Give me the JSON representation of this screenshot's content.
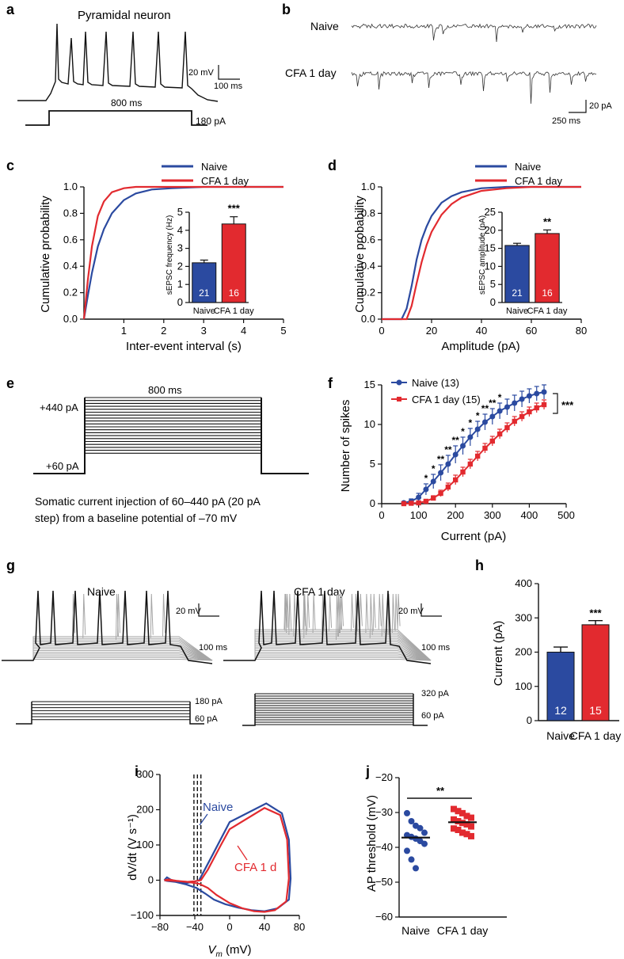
{
  "colors": {
    "naive": "#2b4aa0",
    "cfa": "#e22a2f",
    "gray": "#a6a6a6",
    "black": "#111111"
  },
  "panels": {
    "a": {
      "letter": "a",
      "title": "Pyramidal neuron",
      "duration": "800 ms",
      "current": "180 pA",
      "scale_mv": "20 mV",
      "scale_ms": "100 ms"
    },
    "b": {
      "letter": "b",
      "trace1": "Naive",
      "trace2": "CFA 1 day",
      "scale_pa": "20 pA",
      "scale_ms": "250 ms"
    },
    "e": {
      "letter": "e",
      "duration": "800 ms",
      "top": "+440 pA",
      "bottom": "+60 pA",
      "caption_line1": "Somatic current injection of 60–440 pA (20 pA",
      "caption_line2": "step) from a baseline potential of –70 mV"
    },
    "g": {
      "letter": "g",
      "naive_title": "Naive",
      "cfa_title": "CFA 1 day",
      "naive_top": "180 pA",
      "naive_bottom": "60 pA",
      "cfa_top": "320 pA",
      "cfa_bottom": "60 pA",
      "scale_mv": "20 mV",
      "scale_ms": "100 ms"
    }
  },
  "chart_data": [
    {
      "id": "c",
      "type": "line",
      "letter": "c",
      "xlabel": "Inter-event interval (s)",
      "ylabel": "Cumulative probability",
      "xlim": [
        0,
        5
      ],
      "ylim": [
        0,
        1.0
      ],
      "xticks": [
        "1",
        "2",
        "3",
        "4",
        "5"
      ],
      "yticks": [
        "0.0",
        "0.2",
        "0.4",
        "0.6",
        "0.8",
        "1.0"
      ],
      "legend": [
        "Naive",
        "CFA 1 day"
      ],
      "series": [
        {
          "name": "Naive",
          "x": [
            0,
            0.1,
            0.2,
            0.35,
            0.5,
            0.7,
            1.0,
            1.3,
            1.7,
            2.2,
            3.0,
            4.0,
            5.0
          ],
          "y": [
            0,
            0.18,
            0.35,
            0.55,
            0.68,
            0.8,
            0.9,
            0.95,
            0.98,
            0.99,
            1.0,
            1.0,
            1.0
          ]
        },
        {
          "name": "CFA 1 day",
          "x": [
            0,
            0.1,
            0.2,
            0.35,
            0.5,
            0.7,
            1.0,
            1.3,
            1.7,
            2.2,
            3.0,
            4.0,
            5.0
          ],
          "y": [
            0,
            0.3,
            0.55,
            0.78,
            0.89,
            0.96,
            0.99,
            1.0,
            1.0,
            1.0,
            1.0,
            1.0,
            1.0
          ]
        }
      ],
      "inset": {
        "ylabel": "sEPSC frequency (Hz)",
        "ylim": [
          0,
          5
        ],
        "yticks": [
          "0",
          "1",
          "2",
          "3",
          "4",
          "5"
        ],
        "categories": [
          "Naive",
          "CFA 1 day"
        ],
        "values": [
          2.2,
          4.35
        ],
        "errors": [
          0.15,
          0.4
        ],
        "n": [
          "21",
          "16"
        ],
        "significance": "***"
      }
    },
    {
      "id": "d",
      "type": "line",
      "letter": "d",
      "xlabel": "Amplitude (pA)",
      "ylabel": "Cumulative probability",
      "xlim": [
        0,
        80
      ],
      "ylim": [
        0,
        1.0
      ],
      "xticks": [
        "0",
        "20",
        "40",
        "60",
        "80"
      ],
      "yticks": [
        "0.0",
        "0.2",
        "0.4",
        "0.6",
        "0.8",
        "1.0"
      ],
      "legend": [
        "Naive",
        "CFA 1 day"
      ],
      "series": [
        {
          "name": "Naive",
          "x": [
            0,
            8,
            10,
            12,
            14,
            16,
            18,
            20,
            24,
            28,
            32,
            40,
            50,
            60,
            80
          ],
          "y": [
            0,
            0,
            0.08,
            0.25,
            0.45,
            0.6,
            0.7,
            0.78,
            0.88,
            0.93,
            0.96,
            0.99,
            1.0,
            1.0,
            1.0
          ]
        },
        {
          "name": "CFA 1 day",
          "x": [
            0,
            10,
            12,
            14,
            16,
            18,
            20,
            24,
            28,
            32,
            40,
            50,
            60,
            70,
            80
          ],
          "y": [
            0,
            0,
            0.1,
            0.27,
            0.43,
            0.56,
            0.66,
            0.79,
            0.87,
            0.92,
            0.97,
            0.99,
            1.0,
            1.0,
            1.0
          ]
        }
      ],
      "inset": {
        "ylabel": "sEPSC amplitude (pA)",
        "ylim": [
          0,
          25
        ],
        "yticks": [
          "0",
          "5",
          "10",
          "15",
          "20",
          "25"
        ],
        "categories": [
          "Naive",
          "CFA 1 day"
        ],
        "values": [
          15.8,
          19.1
        ],
        "errors": [
          0.6,
          1.0
        ],
        "n": [
          "21",
          "16"
        ],
        "significance": "**"
      }
    },
    {
      "id": "f",
      "type": "line",
      "letter": "f",
      "xlabel": "Current (pA)",
      "ylabel": "Number of spikes",
      "xlim": [
        0,
        500
      ],
      "ylim": [
        0,
        15
      ],
      "xticks": [
        "0",
        "100",
        "200",
        "300",
        "400",
        "500"
      ],
      "yticks": [
        "0",
        "5",
        "10",
        "15"
      ],
      "legend": [
        "Naive (13)",
        "CFA 1 day (15)"
      ],
      "significance": "***",
      "x": [
        60,
        80,
        100,
        120,
        140,
        160,
        180,
        200,
        220,
        240,
        260,
        280,
        300,
        320,
        340,
        360,
        380,
        400,
        420,
        440
      ],
      "series": [
        {
          "name": "Naive (13)",
          "values": [
            0.1,
            0.3,
            0.8,
            1.8,
            2.8,
            3.9,
            5.0,
            6.2,
            7.3,
            8.4,
            9.4,
            10.3,
            11.0,
            11.7,
            12.2,
            12.7,
            13.2,
            13.6,
            13.9,
            14.1
          ],
          "errors": [
            0.1,
            0.3,
            0.5,
            0.7,
            0.9,
            1.0,
            1.1,
            1.1,
            1.1,
            1.1,
            1.0,
            1.0,
            1.0,
            1.0,
            1.0,
            1.0,
            1.0,
            0.9,
            0.9,
            0.9
          ]
        },
        {
          "name": "CFA 1 day (15)",
          "values": [
            0,
            0.05,
            0.1,
            0.3,
            0.7,
            1.3,
            2.1,
            3.0,
            4.0,
            5.0,
            6.0,
            7.0,
            7.9,
            8.8,
            9.6,
            10.4,
            11.0,
            11.6,
            12.1,
            12.5
          ],
          "errors": [
            0,
            0.05,
            0.1,
            0.2,
            0.3,
            0.4,
            0.5,
            0.6,
            0.6,
            0.6,
            0.6,
            0.6,
            0.6,
            0.6,
            0.6,
            0.6,
            0.6,
            0.6,
            0.6,
            0.6
          ]
        }
      ],
      "point_marks": [
        "",
        "",
        "",
        "*",
        "*",
        "**",
        "**",
        "**",
        "*",
        "*",
        "*",
        "**",
        "**",
        "*",
        "",
        "",
        "",
        "",
        "",
        ""
      ]
    },
    {
      "id": "h",
      "type": "bar",
      "letter": "h",
      "ylabel": "Current (pA)",
      "ylim": [
        0,
        400
      ],
      "yticks": [
        "0",
        "100",
        "200",
        "300",
        "400"
      ],
      "categories": [
        "Naive",
        "CFA 1 day"
      ],
      "values": [
        200,
        280
      ],
      "errors": [
        15,
        12
      ],
      "n": [
        "12",
        "15"
      ],
      "significance": "***"
    },
    {
      "id": "i",
      "type": "line",
      "letter": "i",
      "xlabel": "V",
      "xlabel_sub": "m",
      "xlabel_unit": " (mV)",
      "ylabel": "dV/dt (V s⁻¹)",
      "xlim": [
        -80,
        80
      ],
      "ylim": [
        -100,
        300
      ],
      "xticks": [
        "−80",
        "−40",
        "0",
        "40",
        "80"
      ],
      "yticks": [
        "−100",
        "0",
        "100",
        "200",
        "300"
      ],
      "annotations": [
        "Naive",
        "CFA 1 d"
      ],
      "thresholds": [
        -41,
        -37,
        -33
      ],
      "series": [
        {
          "name": "Naive",
          "x": [
            -75,
            -72,
            -68,
            -60,
            -50,
            -42,
            -35,
            -20,
            0,
            42,
            60,
            68,
            70,
            68,
            55,
            40,
            25,
            10,
            -5,
            -18,
            -28,
            -38,
            -50,
            -62,
            -72,
            -75
          ],
          "y": [
            0,
            8,
            2,
            -5,
            -8,
            -5,
            0,
            70,
            165,
            218,
            190,
            115,
            5,
            -55,
            -80,
            -88,
            -85,
            -78,
            -68,
            -55,
            -38,
            -22,
            -12,
            -5,
            -2,
            0
          ]
        },
        {
          "name": "CFA 1 day",
          "x": [
            -75,
            -70,
            -60,
            -50,
            -40,
            -33,
            -25,
            -10,
            0,
            40,
            58,
            66,
            68,
            65,
            52,
            40,
            28,
            15,
            0,
            -15,
            -25,
            -35,
            -50,
            -62,
            -72,
            -75
          ],
          "y": [
            0,
            2,
            -2,
            -5,
            -3,
            0,
            30,
            100,
            145,
            205,
            185,
            115,
            5,
            -60,
            -85,
            -90,
            -88,
            -80,
            -65,
            -42,
            -22,
            -10,
            -4,
            -2,
            -1,
            0
          ]
        }
      ]
    },
    {
      "id": "j",
      "type": "scatter",
      "letter": "j",
      "ylabel": "AP threshold (mV)",
      "ylim": [
        -60,
        -20
      ],
      "yticks": [
        "−60",
        "−50",
        "−40",
        "−30",
        "−20"
      ],
      "categories": [
        "Naive",
        "CFA 1 day"
      ],
      "significance": "**",
      "means": [
        -37.2,
        -32.8
      ],
      "series": [
        {
          "name": "Naive",
          "values": [
            -30.2,
            -32.5,
            -33.8,
            -34.5,
            -35.8,
            -36.5,
            -37.0,
            -37.5,
            -38.2,
            -39.0,
            -41.0,
            -43.5,
            -46.0
          ]
        },
        {
          "name": "CFA 1 day",
          "values": [
            -29.0,
            -29.6,
            -30.2,
            -31.0,
            -31.5,
            -32.0,
            -32.5,
            -33.0,
            -33.4,
            -34.0,
            -34.6,
            -35.0,
            -35.8,
            -36.2,
            -36.8
          ]
        }
      ]
    }
  ]
}
